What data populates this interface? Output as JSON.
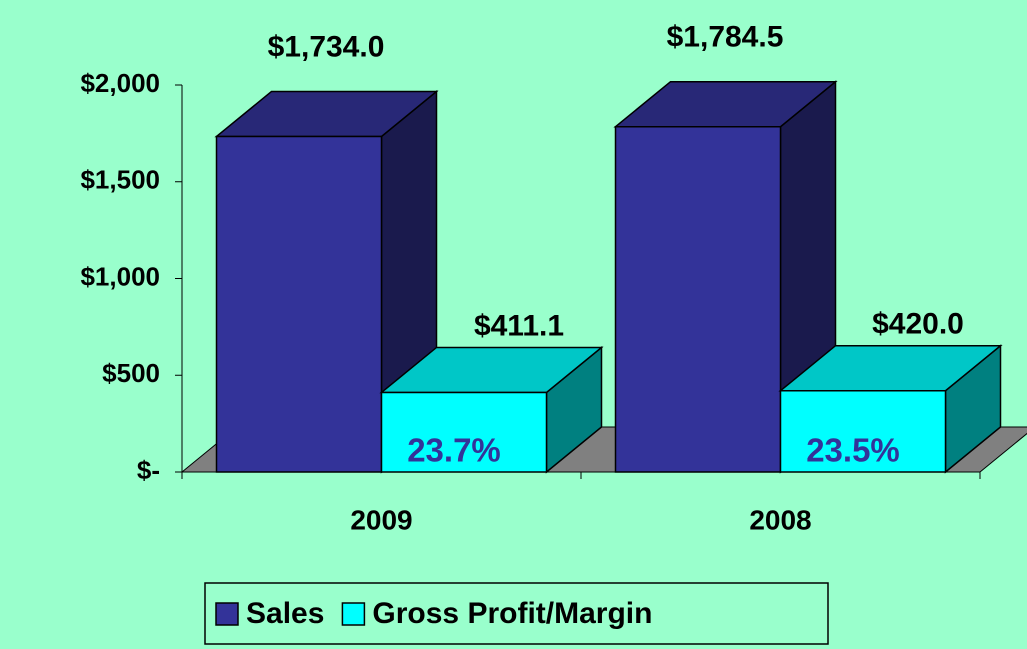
{
  "chart_data": {
    "type": "bar3d",
    "categories": [
      "2009",
      "2008"
    ],
    "series": [
      {
        "name": "Sales",
        "color": "#333399",
        "values": [
          1734.0,
          1784.5
        ],
        "value_labels": [
          "$1,734.0",
          "$1,784.5"
        ]
      },
      {
        "name": "Gross Profit/Margin",
        "color": "#00ffff",
        "values": [
          411.1,
          420.0
        ],
        "value_labels": [
          "$411.1",
          "$420.0"
        ]
      }
    ],
    "annotations": [
      "23.7%",
      "23.5%"
    ],
    "ylim": [
      0,
      2000
    ],
    "yticks": [
      {
        "value": 0,
        "label": "$-"
      },
      {
        "value": 500,
        "label": "$500"
      },
      {
        "value": 1000,
        "label": "$1,000"
      },
      {
        "value": 1500,
        "label": "$1,500"
      },
      {
        "value": 2000,
        "label": "$2,000"
      }
    ],
    "legend": "bottom"
  }
}
